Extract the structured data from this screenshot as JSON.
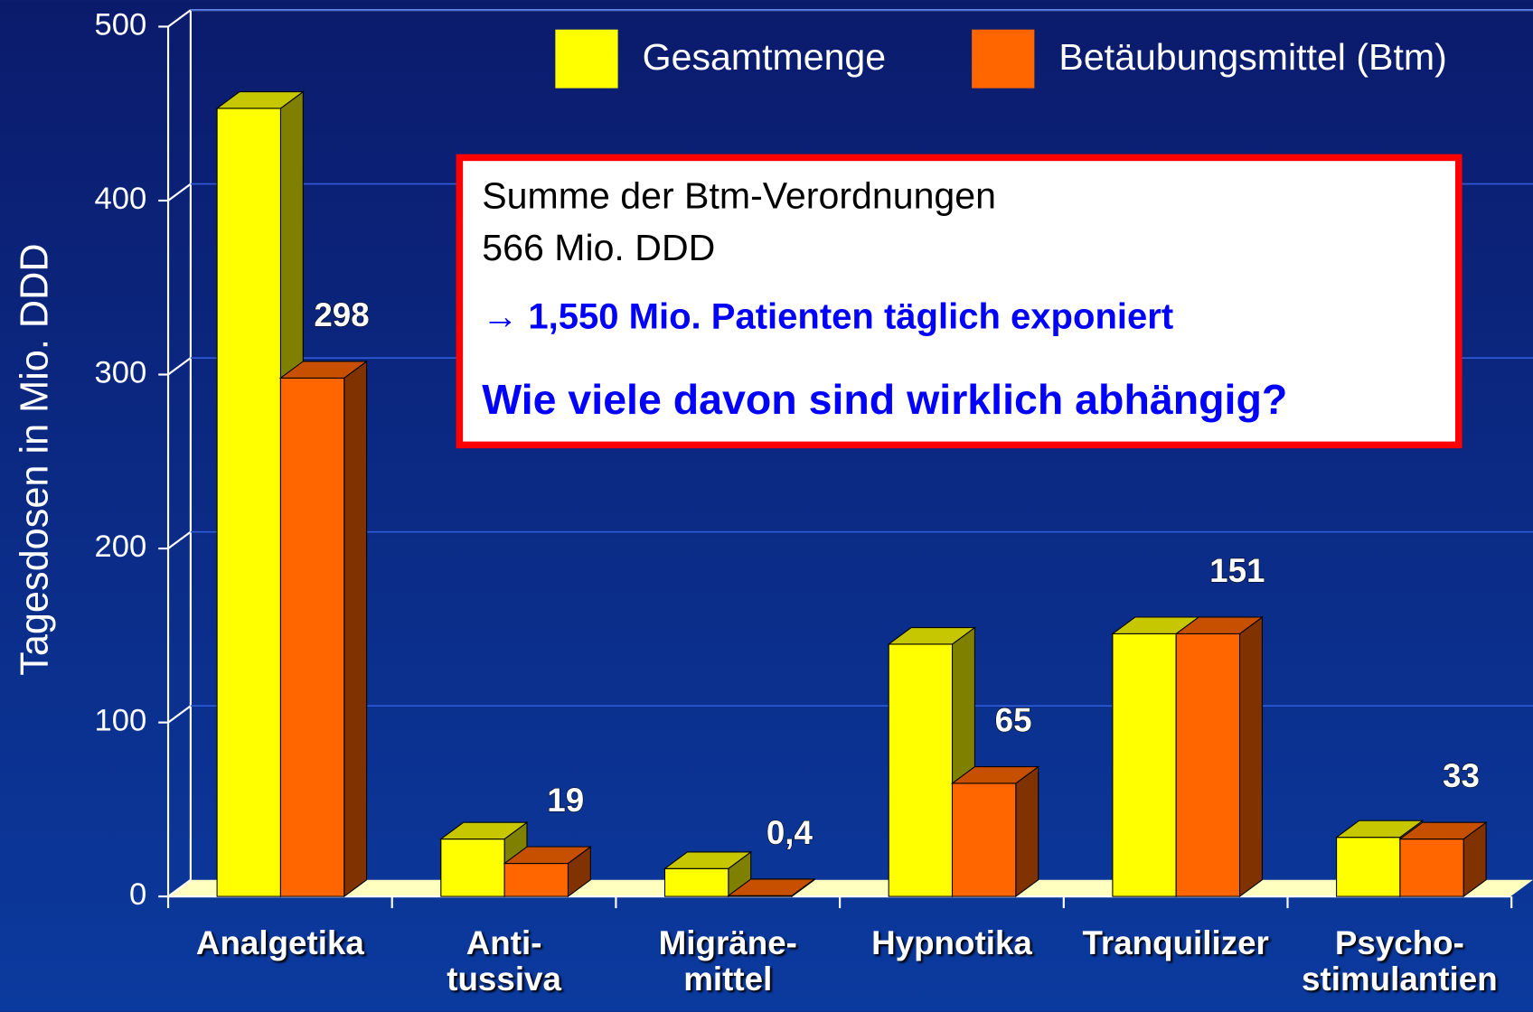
{
  "chart_data": {
    "type": "bar3d",
    "ylabel": "Tagesdosen in Mio. DDD",
    "categories": [
      "Analgetika",
      "Anti-\ntussiva",
      "Migräne-\nmittel",
      "Hypnotika",
      "Tranquilizer",
      "Psycho-\nstimulantien"
    ],
    "series": [
      {
        "name": "Gesamtmenge",
        "color": "#ffff00",
        "values": [
          453,
          33,
          16,
          145,
          151,
          34
        ]
      },
      {
        "name": "Betäubungsmittel (Btm)",
        "color": "#ff6600",
        "values": [
          298,
          19,
          0.4,
          65,
          151,
          33
        ],
        "value_labels": [
          "298",
          "19",
          "0,4",
          "65",
          "151",
          "33"
        ]
      }
    ],
    "ylim": [
      0,
      500
    ],
    "yticks": [
      0,
      100,
      200,
      300,
      400,
      500
    ],
    "grid": true,
    "legend": "top-right",
    "annotation": [
      "Summe der Btm-Verordnungen",
      "566 Mio. DDD",
      "→ 1,550 Mio. Patienten täglich exponiert",
      "Wie viele davon sind wirklich abhängig?"
    ]
  }
}
